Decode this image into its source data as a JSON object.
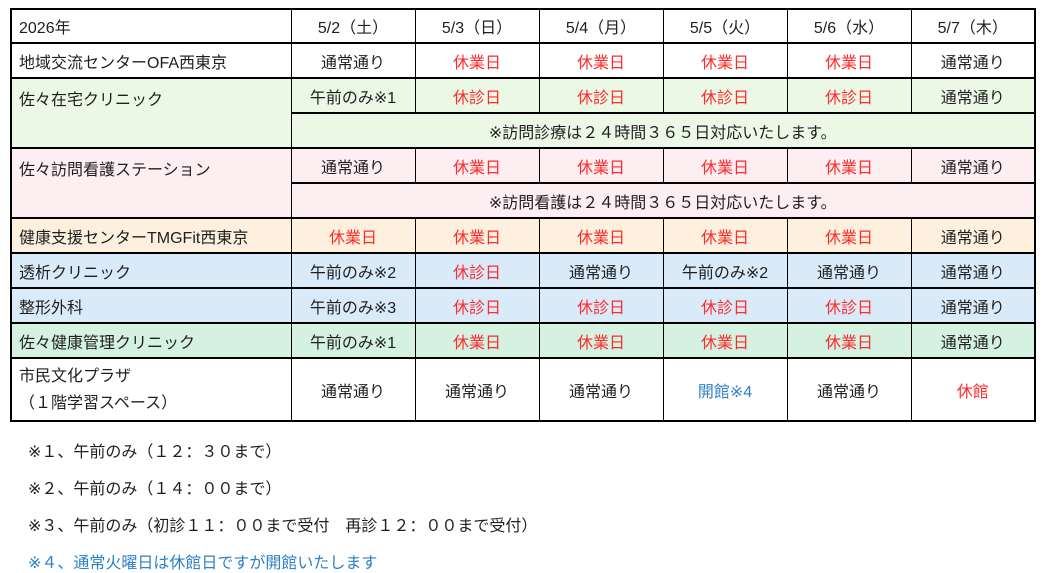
{
  "table": {
    "year_label": "2026年",
    "day_headers": [
      "5/2（土）",
      "5/3（日）",
      "5/4（月）",
      "5/5（火）",
      "5/6（水）",
      "5/7（木）"
    ],
    "facilities": [
      {
        "label": "地域交流センターOFA西東京",
        "cells": [
          "通常通り",
          "休業日",
          "休業日",
          "休業日",
          "休業日",
          "通常通り"
        ]
      },
      {
        "label": "佐々在宅クリニック",
        "cells": [
          "午前のみ※1",
          "休診日",
          "休診日",
          "休診日",
          "休診日",
          "通常通り"
        ],
        "note": "※訪問診療は２４時間３６５日対応いたします。"
      },
      {
        "label": "佐々訪問看護ステーション",
        "cells": [
          "通常通り",
          "休業日",
          "休業日",
          "休業日",
          "休業日",
          "通常通り"
        ],
        "note": "※訪問看護は２４時間３６５日対応いたします。"
      },
      {
        "label": "健康支援センターTMGFit西東京",
        "cells": [
          "休業日",
          "休業日",
          "休業日",
          "休業日",
          "休業日",
          "通常通り"
        ]
      },
      {
        "label": "透析クリニック",
        "cells": [
          "午前のみ※2",
          "休診日",
          "通常通り",
          "午前のみ※2",
          "通常通り",
          "通常通り"
        ]
      },
      {
        "label": "整形外科",
        "cells": [
          "午前のみ※3",
          "休診日",
          "休診日",
          "休診日",
          "休診日",
          "通常通り"
        ]
      },
      {
        "label": "佐々健康管理クリニック",
        "cells": [
          "午前のみ※1",
          "休業日",
          "休業日",
          "休業日",
          "休業日",
          "通常通り"
        ]
      },
      {
        "label": "市民文化プラザ",
        "label_line2": "（１階学習スペース）",
        "cells": [
          "通常通り",
          "通常通り",
          "通常通り",
          "開館※4",
          "通常通り",
          "休館"
        ]
      }
    ]
  },
  "footnotes": [
    "※１、午前のみ（１２：３０まで）",
    "※２、午前のみ（１４：００まで）",
    "※３、午前のみ（初診１１：００まで受付　再診１２：００まで受付）",
    "※４、通常火曜日は休館日ですが開館いたします"
  ],
  "colors": {
    "closed_status_red": "#ff2b2b",
    "special_open_blue": "#2e80c5",
    "row_bg_light_green": "#ecf8e6",
    "row_bg_pink": "#fdeef2",
    "row_bg_cream": "#fdf0de",
    "row_bg_blue": "#d9eaf9",
    "row_bg_mint": "#d4f1e2",
    "border": "#000000"
  }
}
